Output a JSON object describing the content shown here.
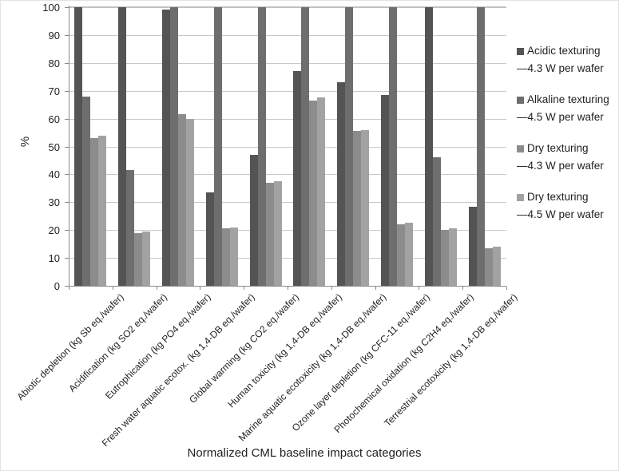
{
  "chart_data": {
    "type": "bar",
    "title": "",
    "xlabel": "Normalized CML baseline impact categories",
    "ylabel": "%",
    "ylim": [
      0,
      100
    ],
    "ytick_step": 10,
    "yticks": [
      0,
      10,
      20,
      30,
      40,
      50,
      60,
      70,
      80,
      90,
      100
    ],
    "grid": true,
    "legend_position": "right",
    "categories": [
      "Abiotic depletion (kg Sb eq./wafer)",
      "Acidification (kg SO2 eq./wafer)",
      "Eutrophication (kg PO4 eq./wafer)",
      "Fresh water aquatic ecotox. (kg 1,4-DB eq./wafer)",
      "Global warming (kg CO2 eq./wafer)",
      "Human toxicity (kg 1,4-DB eq./wafer)",
      "Marine aquatic ecotoxicity (kg 1,4-DB eq./wafer)",
      "Ozone layer depletion (kg CFC-11 eq./wafer)",
      "Photochemical oxidation (kg C2H4 eq./wafer)",
      "Terrestrial ecotoxicity (kg 1,4-DB eq./wafer)"
    ],
    "series": [
      {
        "name": "Acidic texturing",
        "wattage_label": "—4.3 W per wafer",
        "color": "#545454",
        "values": [
          100,
          100,
          99,
          33.5,
          47,
          77,
          73,
          68.5,
          100,
          28.5
        ]
      },
      {
        "name": "Alkaline texturing",
        "wattage_label": "—4.5 W per wafer",
        "color": "#6e6e6e",
        "values": [
          68,
          41.5,
          100,
          100,
          100,
          100,
          100,
          100,
          46,
          100
        ]
      },
      {
        "name": "Dry texturing",
        "wattage_label": "—4.3 W per wafer",
        "color": "#8c8c8c",
        "values": [
          53,
          19,
          61.5,
          20.5,
          37,
          66.5,
          55.5,
          22,
          20,
          13.5
        ]
      },
      {
        "name": "Dry texturing",
        "wattage_label": "—4.5 W per wafer",
        "color": "#a2a2a2",
        "values": [
          54,
          19.5,
          60,
          21,
          37.5,
          67.5,
          56,
          22.5,
          20.5,
          14
        ]
      }
    ]
  }
}
